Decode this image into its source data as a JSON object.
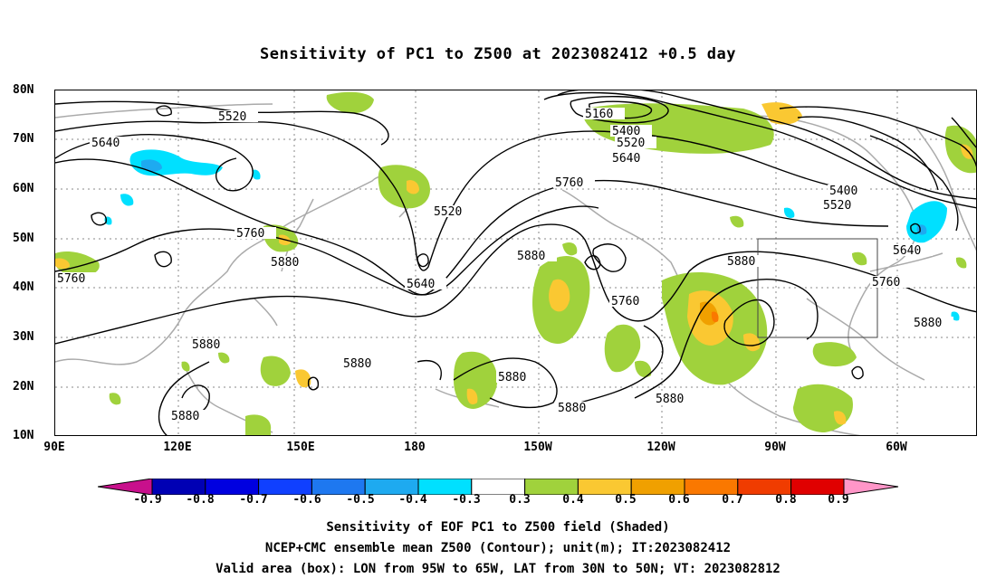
{
  "title": "Sensitivity of PC1 to Z500 at 2023082412 +0.5 day",
  "axes": {
    "y_ticks": [
      "80N",
      "70N",
      "60N",
      "50N",
      "40N",
      "30N",
      "20N",
      "10N"
    ],
    "x_ticks": [
      "90E",
      "120E",
      "150E",
      "180",
      "150W",
      "120W",
      "90W",
      "60W"
    ]
  },
  "contour_labels": [
    "5520",
    "5640",
    "5160",
    "5400",
    "5520",
    "5640",
    "5760",
    "5400",
    "5520",
    "5520",
    "5760",
    "5880",
    "5640",
    "5880",
    "5760",
    "5640",
    "5880",
    "5760",
    "5880",
    "5760",
    "5880",
    "5880",
    "5880",
    "5880",
    "5880",
    "5880",
    "5880"
  ],
  "valid_box": {
    "lon_min": -95,
    "lon_max": -65,
    "lat_min": 30,
    "lat_max": 50
  },
  "colorbar": {
    "labels": [
      "-0.9",
      "-0.8",
      "-0.7",
      "-0.6",
      "-0.5",
      "-0.4",
      "-0.3",
      "0.3",
      "0.4",
      "0.5",
      "0.6",
      "0.7",
      "0.8",
      "0.9"
    ],
    "colors": [
      "#0000b4",
      "#0000e0",
      "#1040ff",
      "#1e78f0",
      "#1eaaf0",
      "#00e0ff",
      "#ffffff",
      "#a0d23c",
      "#fac832",
      "#f0a000",
      "#fa7800",
      "#f03c00",
      "#e00000"
    ],
    "low_arrow_color": "#c8108c",
    "high_arrow_color": "#ff96c8"
  },
  "footer": [
    "Sensitivity of EOF PC1 to Z500 field (Shaded)",
    "NCEP+CMC ensemble mean Z500 (Contour); unit(m); IT:2023082412",
    "Valid area (box): LON from 95W to 65W, LAT from 30N to 50N; VT: 2023082812"
  ]
}
